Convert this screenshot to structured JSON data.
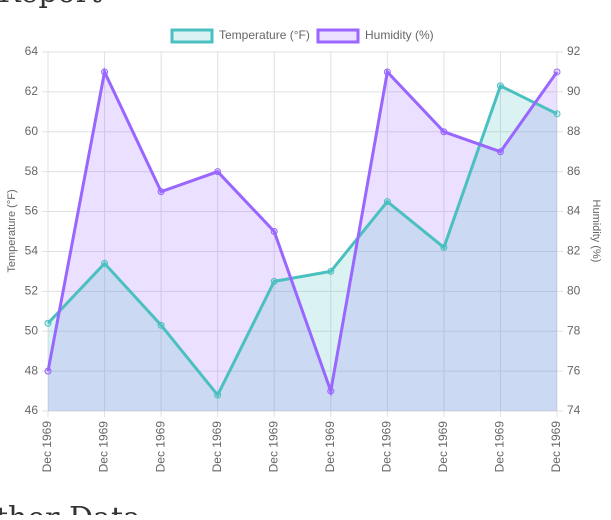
{
  "page_heading": "Report",
  "section_heading": "ther Data",
  "chart_data": {
    "type": "line",
    "categories": [
      "Dec 1969",
      "Dec 1969",
      "Dec 1969",
      "Dec 1969",
      "Dec 1969",
      "Dec 1969",
      "Dec 1969",
      "Dec 1969",
      "Dec 1969",
      "Dec 1969"
    ],
    "series": [
      {
        "name": "Temperature (°F)",
        "color": "#4bc0c0",
        "fill": "rgba(75,192,192,0.2)",
        "values": [
          50.4,
          53.4,
          50.3,
          46.8,
          52.5,
          53.0,
          56.5,
          54.2,
          62.3,
          60.9
        ]
      },
      {
        "name": "Humidity (%)",
        "color": "#9966ff",
        "fill": "rgba(153,102,255,0.2)",
        "axis": "y2",
        "values": [
          76,
          91,
          85,
          86,
          83,
          75,
          91,
          88,
          87,
          91
        ]
      }
    ],
    "y_label": "Temperature (°F)",
    "y2_label": "Humidity (%)",
    "ylim": [
      46,
      64
    ],
    "yticks": [
      46,
      48,
      50,
      52,
      54,
      56,
      58,
      60,
      62,
      64
    ],
    "y2lim": [
      74,
      92
    ],
    "y2ticks": [
      74,
      76,
      78,
      80,
      82,
      84,
      86,
      88,
      90,
      92
    ],
    "grid": true,
    "legend": "top"
  }
}
